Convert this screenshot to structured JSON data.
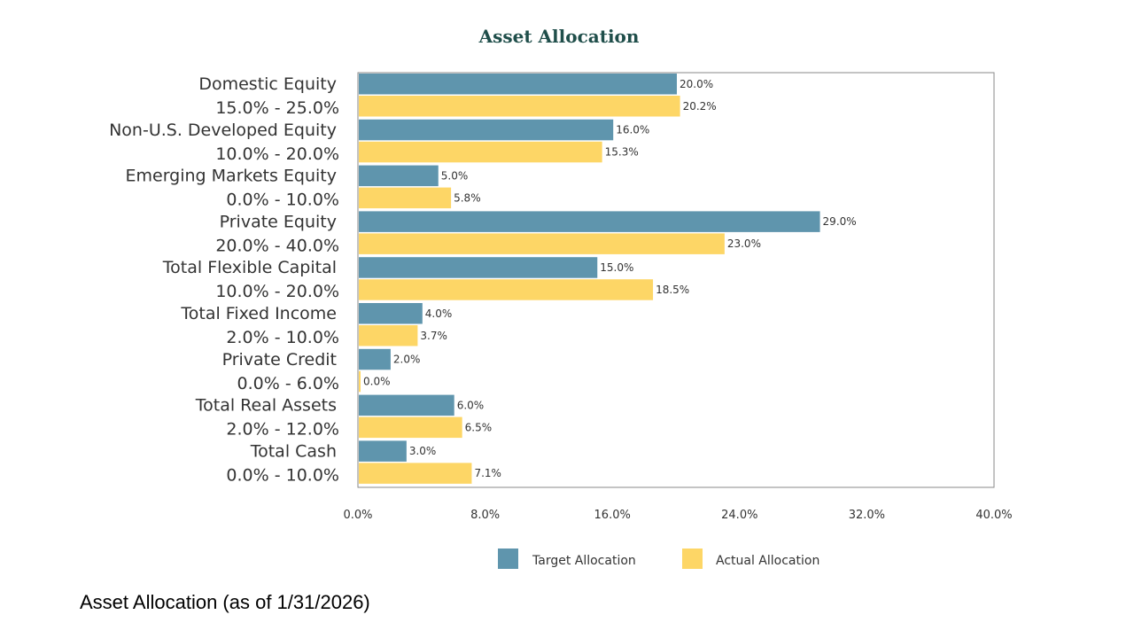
{
  "chart_data": {
    "type": "bar",
    "orientation": "horizontal",
    "title": "Asset Allocation",
    "categories": [
      {
        "name": "Domestic Equity",
        "range": "15.0% - 25.0%"
      },
      {
        "name": "Non-U.S. Developed Equity",
        "range": "10.0% - 20.0%"
      },
      {
        "name": "Emerging Markets Equity",
        "range": "0.0% - 10.0%"
      },
      {
        "name": "Private Equity",
        "range": "20.0% - 40.0%"
      },
      {
        "name": "Total Flexible Capital",
        "range": "10.0% - 20.0%"
      },
      {
        "name": "Total Fixed Income",
        "range": "2.0% - 10.0%"
      },
      {
        "name": "Private Credit",
        "range": "0.0% - 6.0%"
      },
      {
        "name": "Total Real Assets",
        "range": "2.0% - 12.0%"
      },
      {
        "name": "Total Cash",
        "range": "0.0% - 10.0%"
      }
    ],
    "series": [
      {
        "name": "Target Allocation",
        "color": "#5f95ad",
        "values": [
          20.0,
          16.0,
          5.0,
          29.0,
          15.0,
          4.0,
          2.0,
          6.0,
          3.0
        ]
      },
      {
        "name": "Actual Allocation",
        "color": "#fdd666",
        "values": [
          20.2,
          15.3,
          5.8,
          23.0,
          18.5,
          3.7,
          0.0,
          6.5,
          7.1
        ]
      }
    ],
    "xlim": [
      0,
      40
    ],
    "xticks": [
      0,
      8,
      16,
      24,
      32,
      40
    ],
    "tick_suffix": "%",
    "grid": false,
    "legend_position": "bottom"
  },
  "caption": "Asset Allocation (as of 1/31/2026)"
}
